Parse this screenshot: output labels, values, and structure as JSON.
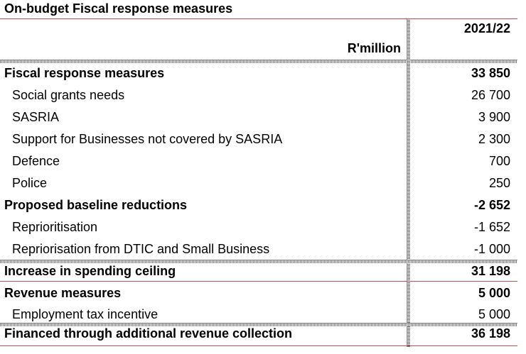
{
  "title": "On-budget Fiscal response measures",
  "header": {
    "year": "2021/22",
    "unit": "R'million"
  },
  "rows": [
    {
      "label": "Fiscal response measures",
      "value": "33 850"
    },
    {
      "label": "Social grants needs",
      "value": "26 700"
    },
    {
      "label": "SASRIA",
      "value": "3 900"
    },
    {
      "label": "Support for Businesses not covered by SASRIA",
      "value": "2 300"
    },
    {
      "label": "Defence",
      "value": "700"
    },
    {
      "label": "Police",
      "value": "250"
    },
    {
      "label": "Proposed baseline reductions",
      "value": "-2 652"
    },
    {
      "label": "Reprioritisation",
      "value": "-1 652"
    },
    {
      "label": "Repriorisation from DTIC and Small Business",
      "value": "-1 000"
    },
    {
      "label": "Increase in spending ceiling",
      "value": "31 198"
    },
    {
      "label": "Revenue measures",
      "value": "5 000"
    },
    {
      "label": "Employment tax incentive",
      "value": "5 000"
    },
    {
      "label": "Financed through additional revenue collection",
      "value": "36 198"
    }
  ]
}
